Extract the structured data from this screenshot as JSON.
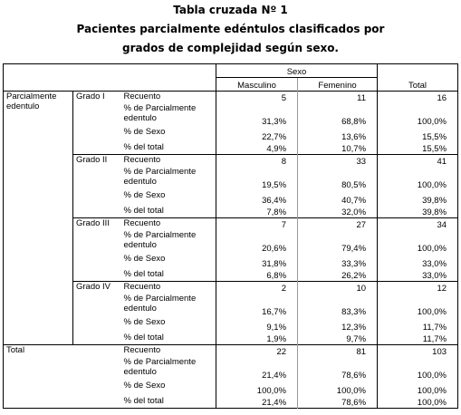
{
  "title": [
    "Tabla cruzada Nº 1",
    "Pacientes parcialmente edéntulos clasificados por",
    "grados de complejidad según sexo."
  ],
  "table": {
    "group_header": "Sexo",
    "columns": [
      "Masculino",
      "Femenino",
      "Total"
    ],
    "sections": [
      {
        "label": "Parcialmente edentulo",
        "groups": [
          {
            "label": "Grado I",
            "rows": [
              [
                "Recuento",
                "5",
                "11",
                "16"
              ],
              [
                "% de Parcialmente edentulo",
                "31,3%",
                "68,8%",
                "100,0%"
              ],
              [
                "% de Sexo",
                "22,7%",
                "13,6%",
                "15,5%"
              ],
              [
                "% del total",
                "4,9%",
                "10,7%",
                "15,5%"
              ]
            ]
          },
          {
            "label": "Grado II",
            "rows": [
              [
                "Recuento",
                "8",
                "33",
                "41"
              ],
              [
                "% de Parcialmente edentulo",
                "19,5%",
                "80,5%",
                "100,0%"
              ],
              [
                "% de Sexo",
                "36,4%",
                "40,7%",
                "39,8%"
              ],
              [
                "% del total",
                "7,8%",
                "32,0%",
                "39,8%"
              ]
            ]
          },
          {
            "label": "Grado III",
            "rows": [
              [
                "Recuento",
                "7",
                "27",
                "34"
              ],
              [
                "% de Parcialmente edentulo",
                "20,6%",
                "79,4%",
                "100,0%"
              ],
              [
                "% de Sexo",
                "31,8%",
                "33,3%",
                "33,0%"
              ],
              [
                "% del total",
                "6,8%",
                "26,2%",
                "33,0%"
              ]
            ]
          },
          {
            "label": "Grado IV",
            "rows": [
              [
                "Recuento",
                "2",
                "10",
                "12"
              ],
              [
                "% de Parcialmente edentulo",
                "16,7%",
                "83,3%",
                "100,0%"
              ],
              [
                "% de Sexo",
                "9,1%",
                "12,3%",
                "11,7%"
              ],
              [
                "% del total",
                "1,9%",
                "9,7%",
                "11,7%"
              ]
            ]
          }
        ]
      },
      {
        "label": "Total",
        "rows": [
          [
            "Recuento",
            "22",
            "81",
            "103"
          ],
          [
            "% de Parcialmente edentulo",
            "21,4%",
            "78,6%",
            "100,0%"
          ],
          [
            "% de Sexo",
            "100,0%",
            "100,0%",
            "100,0%"
          ],
          [
            "% del total",
            "21,4%",
            "78,6%",
            "100,0%"
          ]
        ]
      }
    ]
  }
}
